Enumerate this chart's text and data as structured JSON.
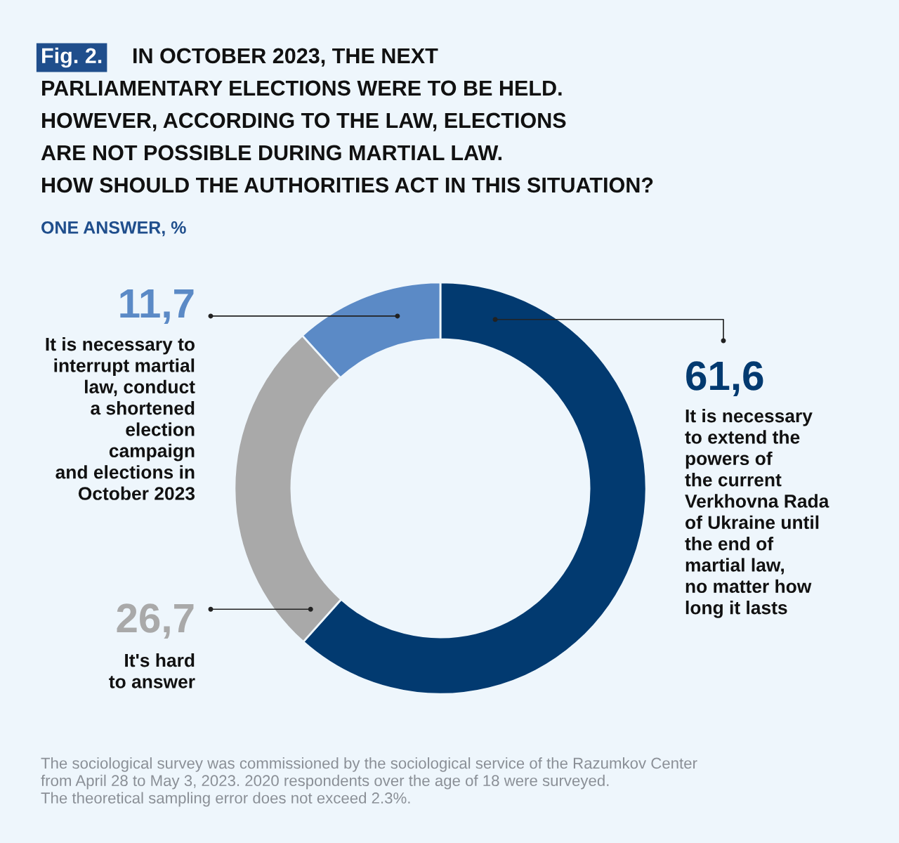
{
  "chart_data": {
    "type": "donut",
    "title": "IN OCTOBER 2023, THE NEXT\nPARLIAMENTARY ELECTIONS WERE TO BE HELD.\nHOWEVER, ACCORDING TO THE LAW, ELECTIONS\nARE NOT POSSIBLE DURING MARTIAL LAW.\nHOW SHOULD THE AUTHORITIES ACT IN THIS SITUATION?",
    "subtitle": "ONE ANSWER, %",
    "annotations": [
      "Fig. 2.",
      "The sociological survey was commissioned by the sociological service of the Razumkov Center\nfrom April 28 to May 3, 2023. 2020 respondents over the age of 18 were surveyed.\nThe theoretical sampling error does not exceed 2.3%."
    ],
    "categories": [
      "It is necessary\nto extend the\npowers of\nthe current\nVerkhovna Rada\nof Ukraine until\nthe end of\nmartial law,\nno matter how\nlong it lasts",
      "It's hard\nto answer",
      "It is necessary to\ninterrupt martial\nlaw, conduct\na shortened\nelection\ncampaign\nand elections in\nOctober 2023"
    ],
    "values": [
      61.6,
      26.7,
      11.7
    ],
    "value_labels": [
      "61,6",
      "26,7",
      "11,7"
    ],
    "colors": [
      "#023a70",
      "#a9a9a9",
      "#5b8ac6"
    ]
  }
}
